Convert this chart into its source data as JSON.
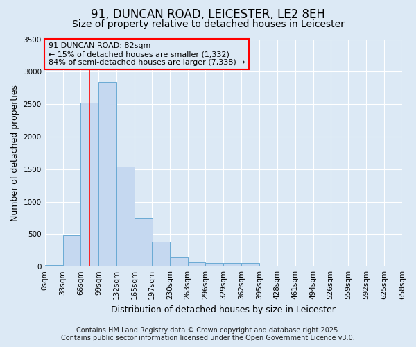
{
  "title": "91, DUNCAN ROAD, LEICESTER, LE2 8EH",
  "subtitle": "Size of property relative to detached houses in Leicester",
  "xlabel": "Distribution of detached houses by size in Leicester",
  "ylabel": "Number of detached properties",
  "bin_labels": [
    "0sqm",
    "33sqm",
    "66sqm",
    "99sqm",
    "132sqm",
    "165sqm",
    "197sqm",
    "230sqm",
    "263sqm",
    "296sqm",
    "329sqm",
    "362sqm",
    "395sqm",
    "428sqm",
    "461sqm",
    "494sqm",
    "526sqm",
    "559sqm",
    "592sqm",
    "625sqm",
    "658sqm"
  ],
  "bin_edges": [
    0,
    33,
    66,
    99,
    132,
    165,
    197,
    230,
    263,
    296,
    329,
    362,
    395,
    428,
    461,
    494,
    526,
    559,
    592,
    625,
    658
  ],
  "bar_heights": [
    20,
    480,
    2520,
    2840,
    1540,
    750,
    390,
    140,
    70,
    50,
    50,
    50,
    0,
    0,
    0,
    0,
    0,
    0,
    0,
    0
  ],
  "bar_color": "#c5d8f0",
  "bar_edge_color": "#6aaad4",
  "red_line_x": 82,
  "ylim": [
    0,
    3500
  ],
  "annotation_line1": "91 DUNCAN ROAD: 82sqm",
  "annotation_line2": "← 15% of detached houses are smaller (1,332)",
  "annotation_line3": "84% of semi-detached houses are larger (7,338) →",
  "footer_line1": "Contains HM Land Registry data © Crown copyright and database right 2025.",
  "footer_line2": "Contains public sector information licensed under the Open Government Licence v3.0.",
  "bg_color": "#dce9f5",
  "plot_bg_color": "#dce9f5",
  "grid_color": "#ffffff",
  "title_fontsize": 12,
  "subtitle_fontsize": 10,
  "axis_label_fontsize": 9,
  "tick_fontsize": 7.5,
  "annotation_fontsize": 8,
  "footer_fontsize": 7
}
